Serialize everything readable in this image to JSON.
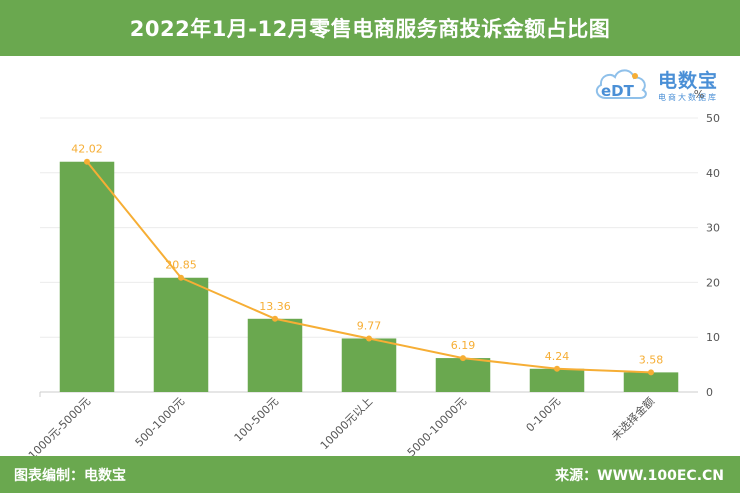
{
  "header": {
    "title": "2022年1月-12月零售电商服务商投诉金额占比图"
  },
  "logo": {
    "name": "电数宝",
    "subtitle": "电商大数据库",
    "mark": "eDT"
  },
  "footer": {
    "left": "图表编制：电数宝",
    "right": "来源：WWW.100EC.CN"
  },
  "colors": {
    "bar": "#6aa84f",
    "line": "#f6ae35",
    "label": "#f6ae35",
    "header": "#6aa84f"
  },
  "chart_data": {
    "type": "bar",
    "categories": [
      "1000元-5000元",
      "500-1000元",
      "100-500元",
      "10000元以上",
      "5000-10000元",
      "0-100元",
      "未选择金额"
    ],
    "series": [
      {
        "type": "bar",
        "values": [
          42.02,
          20.85,
          13.36,
          9.77,
          6.19,
          4.24,
          3.58
        ]
      },
      {
        "type": "line",
        "values": [
          42.02,
          20.85,
          13.36,
          9.77,
          6.19,
          4.24,
          3.58
        ]
      }
    ],
    "data_labels": [
      "42.02",
      "20.85",
      "13.36",
      "9.77",
      "6.19",
      "4.24",
      "3.58"
    ],
    "yaxis": {
      "position": "right",
      "unit": "%",
      "ticks": [
        "0",
        "10",
        "20",
        "30",
        "40",
        "50"
      ],
      "ylim": [
        0,
        50
      ]
    },
    "grid": true
  }
}
